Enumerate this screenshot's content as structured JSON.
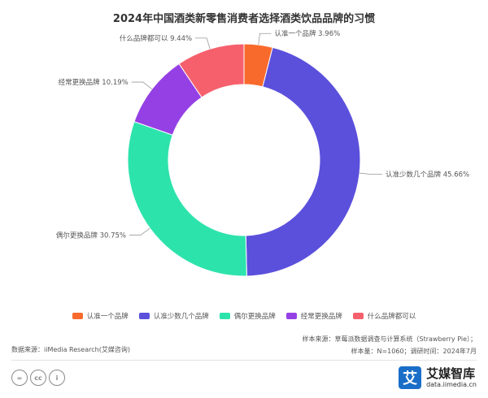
{
  "chart_data": {
    "type": "pie",
    "title": "2024年中国酒类新零售消费者选择酒类饮品品牌的习惯",
    "slices": [
      {
        "label": "认准一个品牌",
        "value": 3.96,
        "value_text": "3.96%",
        "color": "#f86a2c"
      },
      {
        "label": "认准少数几个品牌",
        "value": 45.66,
        "value_text": "45.66%",
        "color": "#5b50dc"
      },
      {
        "label": "偶尔更换品牌",
        "value": 30.75,
        "value_text": "30.75%",
        "color": "#2de3ac"
      },
      {
        "label": "经常更换品牌",
        "value": 10.19,
        "value_text": "10.19%",
        "color": "#9540e5"
      },
      {
        "label": "什么品牌都可以",
        "value": 9.44,
        "value_text": "9.44%",
        "color": "#f6606c"
      }
    ],
    "legend_position": "bottom"
  },
  "footer": {
    "source": "数据来源：iiMedia Research(艾媒咨询)",
    "sample_source": "样本来源：草莓派数据调查与计算系统（Strawberry Pie）；",
    "sample_size": "样本量：N=1060；调研时间：2024年7月"
  },
  "license_icons": [
    "equals-icon",
    "cc-icon",
    "person-icon"
  ],
  "license_text": {
    "equals": "=",
    "cc": "cc",
    "person": "i"
  },
  "brand": {
    "logo_char": "艾",
    "name": "艾媒智库",
    "url": "data.iimedia.cn",
    "color": "#1a6ec8"
  }
}
